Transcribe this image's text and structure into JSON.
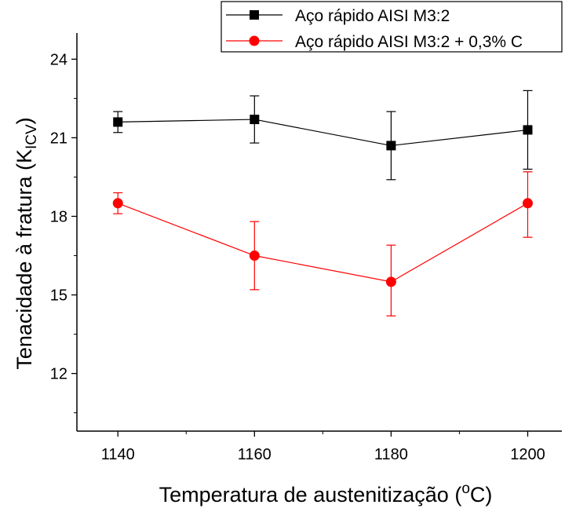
{
  "chart_data": {
    "type": "line",
    "title": "",
    "xlabel": "Temperatura de austenitização (°C)",
    "xlabel_parts": {
      "before": "Temperatura de austenitização (",
      "sup": "o",
      "after": "C)"
    },
    "ylabel": "Tenacidade à fratura (KICV)",
    "ylabel_parts": {
      "before": "Tenacidade à fratura  (K",
      "sub": "ICV",
      "after": ")"
    },
    "x": [
      1140,
      1160,
      1180,
      1200
    ],
    "x_ticks": [
      1140,
      1160,
      1180,
      1200
    ],
    "x_tick_labels": [
      "1140",
      "1160",
      "1180",
      "1200"
    ],
    "y_ticks": [
      12,
      15,
      18,
      21,
      24
    ],
    "y_tick_labels": [
      "12",
      "15",
      "18",
      "21",
      "24"
    ],
    "xlim": [
      1134,
      1205
    ],
    "ylim": [
      9.8,
      25.0
    ],
    "grid": false,
    "legend_position": "top-right",
    "series": [
      {
        "name": "Aço rápido AISI M3:2",
        "color": "#000000",
        "marker": "square",
        "values": [
          21.6,
          21.7,
          20.7,
          21.3
        ],
        "err_low": [
          21.2,
          20.8,
          19.4,
          19.8
        ],
        "err_high": [
          22.0,
          22.6,
          22.0,
          22.8
        ]
      },
      {
        "name": "Aço rápido AISI M3:2 + 0,3% C",
        "color": "#ff0000",
        "marker": "circle",
        "values": [
          18.5,
          16.5,
          15.5,
          18.5
        ],
        "err_low": [
          18.1,
          15.2,
          14.2,
          17.2
        ],
        "err_high": [
          18.9,
          17.8,
          16.9,
          19.7
        ]
      }
    ]
  }
}
